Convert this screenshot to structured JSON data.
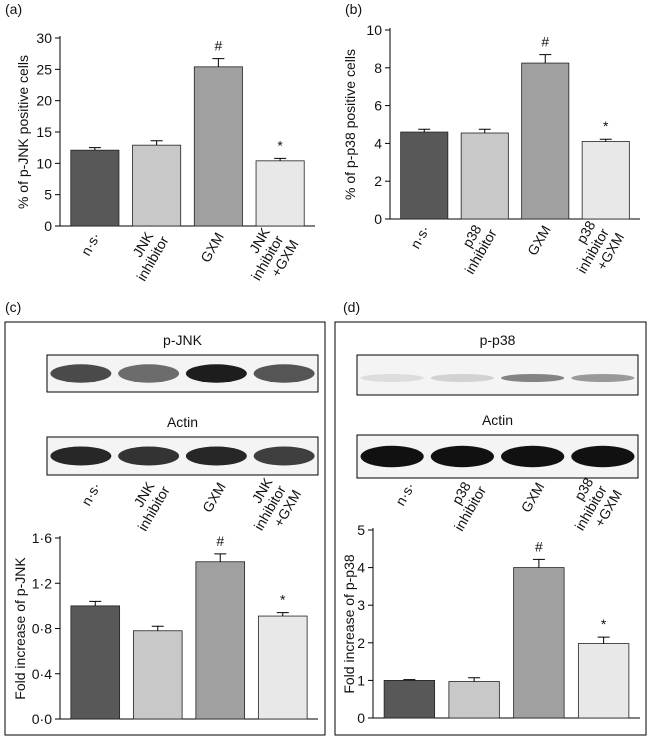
{
  "chart_data": [
    {
      "type": "bar",
      "panel": "(a)",
      "ylabel": "% of p-JNK positive cells",
      "categories": [
        "n·s·",
        "JNK inhibitor",
        "GXM",
        "JNK inhibitor +GXM"
      ],
      "values": [
        12.1,
        12.9,
        25.4,
        10.4
      ],
      "errors": [
        0.4,
        0.7,
        1.3,
        0.4
      ],
      "annotations": [
        null,
        null,
        "#",
        "*"
      ],
      "colors": [
        "#585858",
        "#c8c8c8",
        "#a0a0a0",
        "#e8e8e8"
      ],
      "ylim": [
        0,
        30
      ],
      "yticks": [
        0,
        5,
        10,
        15,
        20,
        25,
        30
      ]
    },
    {
      "type": "bar",
      "panel": "(b)",
      "ylabel": "% of p-p38 positive cells",
      "categories": [
        "n·s·",
        "p38 inhibitor",
        "GXM",
        "p38 inhibitor +GXM"
      ],
      "values": [
        4.6,
        4.55,
        8.25,
        4.1
      ],
      "errors": [
        0.15,
        0.2,
        0.45,
        0.12
      ],
      "annotations": [
        null,
        null,
        "#",
        "*"
      ],
      "colors": [
        "#585858",
        "#c8c8c8",
        "#a0a0a0",
        "#e8e8e8"
      ],
      "ylim": [
        0,
        10
      ],
      "yticks": [
        0,
        2,
        4,
        6,
        8,
        10
      ]
    },
    {
      "type": "bar",
      "panel": "(c)",
      "ylabel": "Fold increase of p-JNK",
      "blot_labels": [
        "p-JNK",
        "Actin"
      ],
      "categories": [
        "n·s·",
        "JNK inhibitor",
        "GXM",
        "JNK inhibitor +GXM"
      ],
      "values": [
        1.0,
        0.78,
        1.39,
        0.91
      ],
      "errors": [
        0.04,
        0.04,
        0.07,
        0.03
      ],
      "annotations": [
        null,
        null,
        "#",
        "*"
      ],
      "colors": [
        "#585858",
        "#c8c8c8",
        "#a0a0a0",
        "#e8e8e8"
      ],
      "ylim": [
        0,
        1.6
      ],
      "yticks": [
        {
          "value": 0,
          "label": "0·0"
        },
        {
          "value": 0.4,
          "label": "0·4"
        },
        {
          "value": 0.8,
          "label": "0·8"
        },
        {
          "value": 1.2,
          "label": "1·2"
        },
        {
          "value": 1.6,
          "label": "1·6"
        }
      ]
    },
    {
      "type": "bar",
      "panel": "(d)",
      "ylabel": "Fold increase of p-p38",
      "blot_labels": [
        "p-p38",
        "Actin"
      ],
      "categories": [
        "n·s·",
        "p38 inhibitor",
        "GXM",
        "p38 inhibitor +GXM"
      ],
      "values": [
        1.0,
        0.97,
        4.0,
        1.98
      ],
      "errors": [
        0.02,
        0.1,
        0.22,
        0.17
      ],
      "annotations": [
        null,
        null,
        "#",
        "*"
      ],
      "colors": [
        "#585858",
        "#c8c8c8",
        "#a0a0a0",
        "#e8e8e8"
      ],
      "ylim": [
        0,
        5
      ],
      "yticks": [
        0,
        1,
        2,
        3,
        4,
        5
      ]
    }
  ]
}
